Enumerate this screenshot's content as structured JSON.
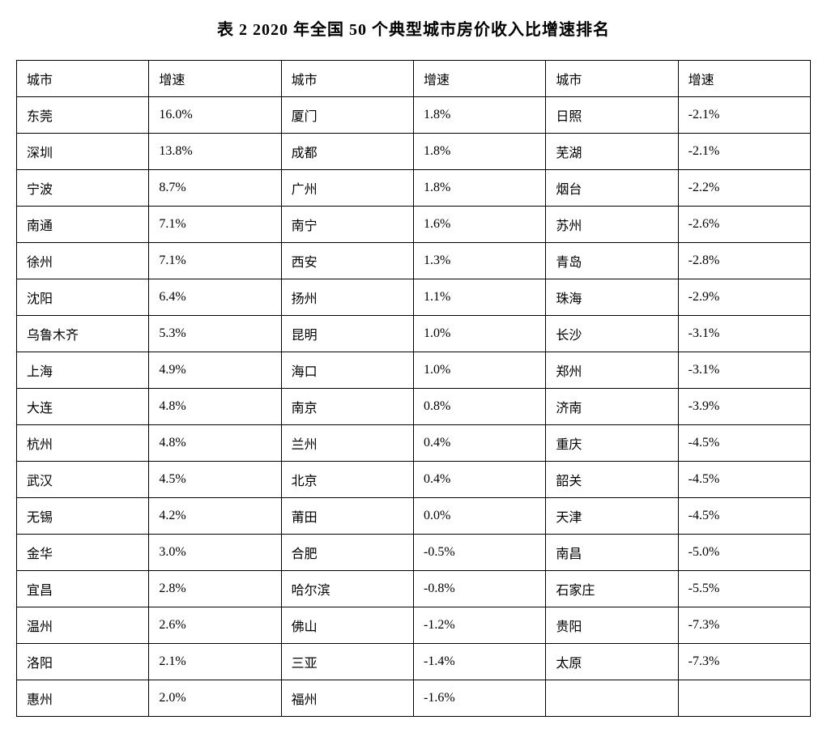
{
  "title": "表 2    2020 年全国 50 个典型城市房价收入比增速排名",
  "table": {
    "headers": [
      "城市",
      "增速",
      "城市",
      "增速",
      "城市",
      "增速"
    ],
    "rows": [
      [
        "东莞",
        "16.0%",
        "厦门",
        "1.8%",
        "日照",
        "-2.1%"
      ],
      [
        "深圳",
        "13.8%",
        "成都",
        "1.8%",
        "芜湖",
        "-2.1%"
      ],
      [
        "宁波",
        "8.7%",
        "广州",
        "1.8%",
        "烟台",
        "-2.2%"
      ],
      [
        "南通",
        "7.1%",
        "南宁",
        "1.6%",
        "苏州",
        "-2.6%"
      ],
      [
        "徐州",
        "7.1%",
        "西安",
        "1.3%",
        "青岛",
        "-2.8%"
      ],
      [
        "沈阳",
        "6.4%",
        "扬州",
        "1.1%",
        "珠海",
        "-2.9%"
      ],
      [
        "乌鲁木齐",
        "5.3%",
        "昆明",
        "1.0%",
        "长沙",
        "-3.1%"
      ],
      [
        "上海",
        "4.9%",
        "海口",
        "1.0%",
        "郑州",
        "-3.1%"
      ],
      [
        "大连",
        "4.8%",
        "南京",
        "0.8%",
        "济南",
        "-3.9%"
      ],
      [
        "杭州",
        "4.8%",
        "兰州",
        "0.4%",
        "重庆",
        "-4.5%"
      ],
      [
        "武汉",
        "4.5%",
        "北京",
        "0.4%",
        "韶关",
        "-4.5%"
      ],
      [
        "无锡",
        "4.2%",
        "莆田",
        "0.0%",
        "天津",
        "-4.5%"
      ],
      [
        "金华",
        "3.0%",
        "合肥",
        "-0.5%",
        "南昌",
        "-5.0%"
      ],
      [
        "宜昌",
        "2.8%",
        "哈尔滨",
        "-0.8%",
        "石家庄",
        "-5.5%"
      ],
      [
        "温州",
        "2.6%",
        "佛山",
        "-1.2%",
        "贵阳",
        "-7.3%"
      ],
      [
        "洛阳",
        "2.1%",
        "三亚",
        "-1.4%",
        "太原",
        "-7.3%"
      ],
      [
        "惠州",
        "2.0%",
        "福州",
        "-1.6%",
        "",
        ""
      ]
    ],
    "border_color": "#000000",
    "background_color": "#ffffff",
    "text_color": "#000000",
    "font_size": 16,
    "cell_padding": "10px 12px"
  }
}
